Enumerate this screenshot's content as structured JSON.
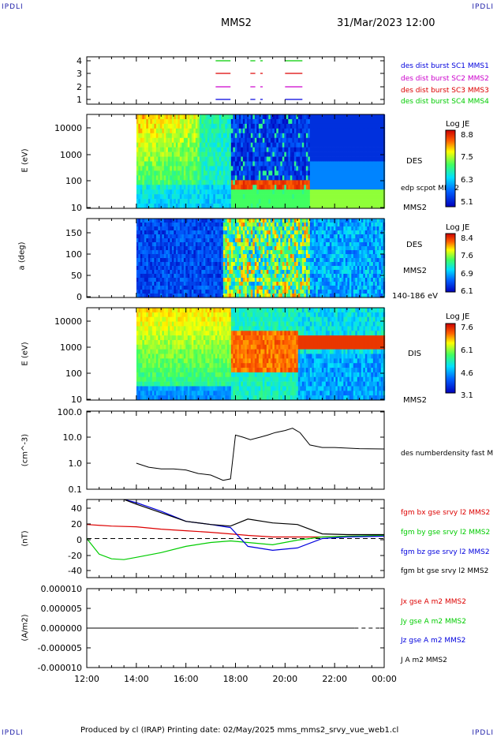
{
  "corners": {
    "tl": "IPDLI",
    "tr": "IPDLI",
    "bl": "IPDLI",
    "br": "IPDLI"
  },
  "header": {
    "spacecraft": "MMS2",
    "datetime": "31/Mar/2023 12:00"
  },
  "footer": "Produced by cl (IRAP)   Printing date: 02/May/2025   mms_mms2_srvy_vue_web1.cl",
  "colors": {
    "red": "#dd0000",
    "green": "#00cc00",
    "blue": "#0000dd",
    "magenta": "#cc00cc",
    "black": "#000000"
  },
  "chart_data": [
    {
      "type": "line",
      "title": "availability",
      "ylim": [
        1,
        4
      ],
      "yticks": [
        "4",
        "3",
        "2",
        "1"
      ],
      "legend": [
        {
          "label": "des dist burst SC1 MMS1",
          "color": "#0000dd"
        },
        {
          "label": "des dist burst SC2 MMS2",
          "color": "#cc00cc"
        },
        {
          "label": "des dist burst SC3 MMS3",
          "color": "#dd0000"
        },
        {
          "label": "des dist burst SC4 MMS4",
          "color": "#00cc00"
        }
      ],
      "intervals_hours": [
        [
          17.2,
          17.8
        ],
        [
          18.6,
          18.8
        ],
        [
          19.0,
          19.1
        ],
        [
          20.0,
          20.7
        ]
      ]
    },
    {
      "type": "heatmap",
      "ylabel": "E (eV)",
      "yticks": [
        "10000",
        "1000",
        "100",
        "10"
      ],
      "right_labels": [
        "DES",
        "edp scpot MMS2",
        "MMS2"
      ],
      "colorbar": {
        "title": "Log JE",
        "ticks": [
          "8.8",
          "7.5",
          "6.3",
          "5.1"
        ]
      }
    },
    {
      "type": "heatmap",
      "ylabel": "a (deg)",
      "yticks": [
        "150",
        "100",
        "50",
        "0"
      ],
      "right_labels": [
        "DES",
        "MMS2",
        "140-186 eV"
      ],
      "colorbar": {
        "title": "Log JE",
        "ticks": [
          "8.4",
          "7.6",
          "6.9",
          "6.1"
        ]
      }
    },
    {
      "type": "heatmap",
      "ylabel": "E (eV)",
      "yticks": [
        "10000",
        "1000",
        "100",
        "10"
      ],
      "right_labels": [
        "DIS",
        "MMS2"
      ],
      "colorbar": {
        "title": "Log JE",
        "ticks": [
          "7.6",
          "6.1",
          "4.6",
          "3.1"
        ]
      }
    },
    {
      "type": "line",
      "ylabel": "(cm^-3)",
      "yticks": [
        "100.0",
        "10.0",
        "1.0",
        "0.1"
      ],
      "yscale": "log",
      "ylim": [
        0.1,
        100
      ],
      "series": [
        {
          "name": "des numberdensity fast M",
          "color": "#000000",
          "x": [
            14.0,
            14.5,
            15.0,
            15.5,
            16.0,
            16.5,
            17.0,
            17.5,
            17.8,
            18.0,
            18.3,
            18.6,
            19.0,
            19.3,
            19.6,
            20.0,
            20.3,
            20.6,
            21.0,
            21.5,
            22.0,
            22.5,
            23.0,
            24.0
          ],
          "y": [
            1.0,
            0.7,
            0.6,
            0.6,
            0.55,
            0.4,
            0.35,
            0.22,
            0.25,
            12,
            10,
            8,
            10,
            12,
            15,
            18,
            22,
            15,
            5,
            4,
            4,
            3.8,
            3.6,
            3.5
          ]
        }
      ]
    },
    {
      "type": "line",
      "ylabel": "(nT)",
      "yticks": [
        "40",
        "20",
        "0",
        "-20",
        "-40"
      ],
      "ylim": [
        -50,
        50
      ],
      "series": [
        {
          "name": "fgm bx gse srvy l2 MMS2",
          "color": "#dd0000",
          "x": [
            12.0,
            13.0,
            14.0,
            15.0,
            16.0,
            17.0,
            17.8,
            18.5,
            19.5,
            20.5,
            21.5,
            22.5,
            24.0
          ],
          "y": [
            18,
            16,
            15,
            12,
            10,
            8,
            6,
            4,
            2,
            2,
            2,
            3,
            4
          ]
        },
        {
          "name": "fgm by gse srvy l2 MMS2",
          "color": "#00cc00",
          "x": [
            12.0,
            12.5,
            13.0,
            13.5,
            14.0,
            15.0,
            16.0,
            17.0,
            17.8,
            18.5,
            19.5,
            20.5,
            21.5,
            22.5,
            24.0
          ],
          "y": [
            0,
            -20,
            -26,
            -27,
            -24,
            -18,
            -10,
            -5,
            -3,
            -5,
            -8,
            -2,
            2,
            3,
            4
          ]
        },
        {
          "name": "fgm bz gse srvy l2 MMS2",
          "color": "#0000dd",
          "x": [
            13.5,
            14.0,
            15.0,
            16.0,
            17.0,
            17.8,
            18.5,
            19.5,
            20.5,
            21.5,
            22.5,
            24.0
          ],
          "y": [
            50,
            46,
            35,
            22,
            18,
            14,
            -10,
            -15,
            -12,
            0,
            2,
            3
          ]
        },
        {
          "name": "fgm bt gse srvy l2 MMS2",
          "color": "#000000",
          "x": [
            13.5,
            14.0,
            15.0,
            16.0,
            17.0,
            17.8,
            18.5,
            19.5,
            20.5,
            21.5,
            22.5,
            24.0
          ],
          "y": [
            50,
            44,
            33,
            22,
            18,
            16,
            25,
            20,
            18,
            6,
            5,
            5
          ]
        }
      ]
    },
    {
      "type": "line",
      "ylabel": "(A/m2)",
      "yticks": [
        "0.000010",
        "0.000005",
        "0.000000",
        "-0.000005",
        "-0.000010"
      ],
      "ylim": [
        -1e-05,
        1e-05
      ],
      "series": [
        {
          "name": "Jx gse A m2 MMS2",
          "color": "#dd0000"
        },
        {
          "name": "Jy gse A m2 MMS2",
          "color": "#00cc00"
        },
        {
          "name": "Jz gse A m2 MMS2",
          "color": "#0000dd"
        },
        {
          "name": "J A m2 MMS2",
          "color": "#000000"
        }
      ],
      "xlabels": [
        "12:00",
        "14:00",
        "16:00",
        "18:00",
        "20:00",
        "22:00",
        "00:00"
      ]
    }
  ]
}
